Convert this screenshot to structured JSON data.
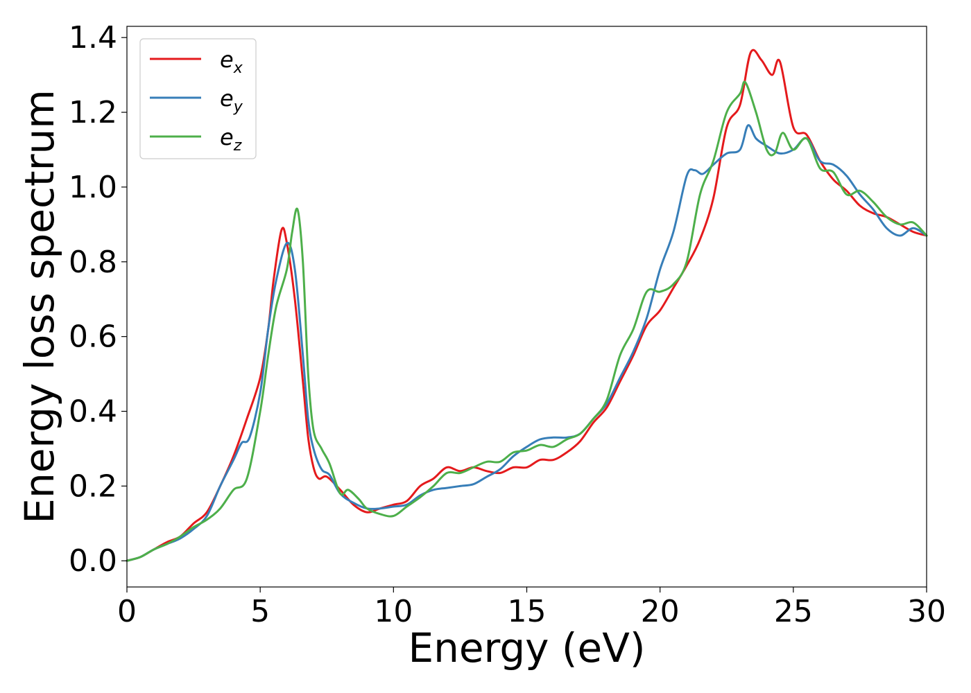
{
  "chart_data": {
    "type": "line",
    "xlabel": "Energy (eV)",
    "ylabel": "Energy loss spectrum",
    "xlim": [
      0,
      30
    ],
    "ylim": [
      -0.07,
      1.43
    ],
    "xticks": [
      0,
      5,
      10,
      15,
      20,
      25,
      30
    ],
    "xtick_labels": [
      "0",
      "5",
      "10",
      "15",
      "20",
      "25",
      "30"
    ],
    "yticks": [
      0.0,
      0.2,
      0.4,
      0.6,
      0.8,
      1.0,
      1.2,
      1.4
    ],
    "ytick_labels": [
      "0.0",
      "0.2",
      "0.4",
      "0.6",
      "0.8",
      "1.0",
      "1.2",
      "1.4"
    ],
    "grid": false,
    "legend_position": "top-left",
    "series": [
      {
        "name": "e_x",
        "label_main": "e",
        "label_sub": "x",
        "color": "#e41a1c",
        "points": [
          [
            0,
            0.0
          ],
          [
            0.5,
            0.01
          ],
          [
            1,
            0.03
          ],
          [
            1.5,
            0.05
          ],
          [
            2,
            0.065
          ],
          [
            2.5,
            0.1
          ],
          [
            3,
            0.13
          ],
          [
            3.5,
            0.2
          ],
          [
            4,
            0.28
          ],
          [
            4.5,
            0.38
          ],
          [
            5,
            0.49
          ],
          [
            5.3,
            0.62
          ],
          [
            5.5,
            0.75
          ],
          [
            5.8,
            0.885
          ],
          [
            6,
            0.85
          ],
          [
            6.3,
            0.7
          ],
          [
            6.6,
            0.48
          ],
          [
            6.8,
            0.33
          ],
          [
            7,
            0.25
          ],
          [
            7.2,
            0.22
          ],
          [
            7.5,
            0.225
          ],
          [
            8,
            0.19
          ],
          [
            8.5,
            0.15
          ],
          [
            9,
            0.13
          ],
          [
            9.5,
            0.14
          ],
          [
            10,
            0.15
          ],
          [
            10.5,
            0.16
          ],
          [
            11,
            0.2
          ],
          [
            11.5,
            0.22
          ],
          [
            12,
            0.25
          ],
          [
            12.5,
            0.24
          ],
          [
            13,
            0.25
          ],
          [
            13.5,
            0.24
          ],
          [
            14,
            0.235
          ],
          [
            14.5,
            0.25
          ],
          [
            15,
            0.25
          ],
          [
            15.5,
            0.27
          ],
          [
            16,
            0.27
          ],
          [
            16.5,
            0.29
          ],
          [
            17,
            0.32
          ],
          [
            17.5,
            0.37
          ],
          [
            18,
            0.41
          ],
          [
            18.5,
            0.48
          ],
          [
            19,
            0.55
          ],
          [
            19.5,
            0.63
          ],
          [
            20,
            0.67
          ],
          [
            20.5,
            0.73
          ],
          [
            21,
            0.79
          ],
          [
            21.5,
            0.86
          ],
          [
            22,
            0.97
          ],
          [
            22.5,
            1.16
          ],
          [
            23,
            1.22
          ],
          [
            23.4,
            1.36
          ],
          [
            23.8,
            1.34
          ],
          [
            24.2,
            1.3
          ],
          [
            24.5,
            1.335
          ],
          [
            25,
            1.16
          ],
          [
            25.5,
            1.14
          ],
          [
            26,
            1.07
          ],
          [
            26.5,
            1.02
          ],
          [
            27,
            0.99
          ],
          [
            27.5,
            0.95
          ],
          [
            28,
            0.93
          ],
          [
            28.5,
            0.92
          ],
          [
            29,
            0.9
          ],
          [
            29.5,
            0.88
          ],
          [
            30,
            0.87
          ]
        ]
      },
      {
        "name": "e_y",
        "label_main": "e",
        "label_sub": "y",
        "color": "#377eb8",
        "points": [
          [
            0,
            0.0
          ],
          [
            0.5,
            0.01
          ],
          [
            1,
            0.03
          ],
          [
            1.5,
            0.045
          ],
          [
            2,
            0.06
          ],
          [
            2.5,
            0.085
          ],
          [
            3,
            0.12
          ],
          [
            3.5,
            0.2
          ],
          [
            4,
            0.27
          ],
          [
            4.3,
            0.315
          ],
          [
            4.6,
            0.33
          ],
          [
            5,
            0.45
          ],
          [
            5.3,
            0.62
          ],
          [
            5.6,
            0.75
          ],
          [
            6,
            0.85
          ],
          [
            6.3,
            0.78
          ],
          [
            6.6,
            0.55
          ],
          [
            6.8,
            0.38
          ],
          [
            7,
            0.3
          ],
          [
            7.3,
            0.245
          ],
          [
            7.6,
            0.23
          ],
          [
            8,
            0.18
          ],
          [
            8.5,
            0.155
          ],
          [
            9,
            0.14
          ],
          [
            9.5,
            0.14
          ],
          [
            10,
            0.145
          ],
          [
            10.5,
            0.15
          ],
          [
            11,
            0.175
          ],
          [
            11.5,
            0.19
          ],
          [
            12,
            0.195
          ],
          [
            12.5,
            0.2
          ],
          [
            13,
            0.205
          ],
          [
            13.5,
            0.225
          ],
          [
            14,
            0.245
          ],
          [
            14.5,
            0.28
          ],
          [
            15,
            0.305
          ],
          [
            15.5,
            0.325
          ],
          [
            16,
            0.33
          ],
          [
            16.5,
            0.33
          ],
          [
            17,
            0.34
          ],
          [
            17.5,
            0.38
          ],
          [
            18,
            0.42
          ],
          [
            18.5,
            0.49
          ],
          [
            19,
            0.56
          ],
          [
            19.5,
            0.65
          ],
          [
            20,
            0.78
          ],
          [
            20.5,
            0.88
          ],
          [
            21,
            1.03
          ],
          [
            21.3,
            1.045
          ],
          [
            21.6,
            1.035
          ],
          [
            22,
            1.06
          ],
          [
            22.5,
            1.09
          ],
          [
            23,
            1.1
          ],
          [
            23.3,
            1.165
          ],
          [
            23.6,
            1.13
          ],
          [
            24,
            1.11
          ],
          [
            24.5,
            1.09
          ],
          [
            25,
            1.1
          ],
          [
            25.5,
            1.13
          ],
          [
            26,
            1.07
          ],
          [
            26.5,
            1.06
          ],
          [
            27,
            1.03
          ],
          [
            27.5,
            0.98
          ],
          [
            28,
            0.94
          ],
          [
            28.5,
            0.89
          ],
          [
            29,
            0.87
          ],
          [
            29.5,
            0.89
          ],
          [
            30,
            0.87
          ]
        ]
      },
      {
        "name": "e_z",
        "label_main": "e",
        "label_sub": "z",
        "color": "#4daf4a",
        "points": [
          [
            0,
            0.0
          ],
          [
            0.5,
            0.01
          ],
          [
            1,
            0.03
          ],
          [
            1.5,
            0.045
          ],
          [
            2,
            0.065
          ],
          [
            2.5,
            0.09
          ],
          [
            3,
            0.11
          ],
          [
            3.5,
            0.14
          ],
          [
            4,
            0.19
          ],
          [
            4.5,
            0.22
          ],
          [
            5,
            0.4
          ],
          [
            5.3,
            0.55
          ],
          [
            5.6,
            0.68
          ],
          [
            6,
            0.78
          ],
          [
            6.2,
            0.88
          ],
          [
            6.4,
            0.94
          ],
          [
            6.6,
            0.8
          ],
          [
            6.8,
            0.5
          ],
          [
            7,
            0.35
          ],
          [
            7.3,
            0.3
          ],
          [
            7.6,
            0.26
          ],
          [
            8,
            0.18
          ],
          [
            8.3,
            0.19
          ],
          [
            8.7,
            0.165
          ],
          [
            9,
            0.14
          ],
          [
            9.5,
            0.125
          ],
          [
            10,
            0.12
          ],
          [
            10.5,
            0.145
          ],
          [
            11,
            0.17
          ],
          [
            11.5,
            0.2
          ],
          [
            12,
            0.235
          ],
          [
            12.5,
            0.235
          ],
          [
            13,
            0.25
          ],
          [
            13.5,
            0.265
          ],
          [
            14,
            0.265
          ],
          [
            14.5,
            0.29
          ],
          [
            15,
            0.295
          ],
          [
            15.5,
            0.31
          ],
          [
            16,
            0.305
          ],
          [
            16.5,
            0.325
          ],
          [
            17,
            0.34
          ],
          [
            17.5,
            0.38
          ],
          [
            18,
            0.43
          ],
          [
            18.5,
            0.55
          ],
          [
            19,
            0.62
          ],
          [
            19.5,
            0.72
          ],
          [
            20,
            0.72
          ],
          [
            20.5,
            0.74
          ],
          [
            21,
            0.8
          ],
          [
            21.5,
            0.98
          ],
          [
            22,
            1.07
          ],
          [
            22.5,
            1.2
          ],
          [
            23,
            1.25
          ],
          [
            23.2,
            1.28
          ],
          [
            23.6,
            1.2
          ],
          [
            24,
            1.1
          ],
          [
            24.3,
            1.09
          ],
          [
            24.6,
            1.145
          ],
          [
            25,
            1.1
          ],
          [
            25.5,
            1.13
          ],
          [
            26,
            1.05
          ],
          [
            26.5,
            1.04
          ],
          [
            27,
            0.98
          ],
          [
            27.5,
            0.99
          ],
          [
            28,
            0.96
          ],
          [
            28.5,
            0.92
          ],
          [
            29,
            0.9
          ],
          [
            29.5,
            0.905
          ],
          [
            30,
            0.87
          ]
        ]
      }
    ]
  }
}
